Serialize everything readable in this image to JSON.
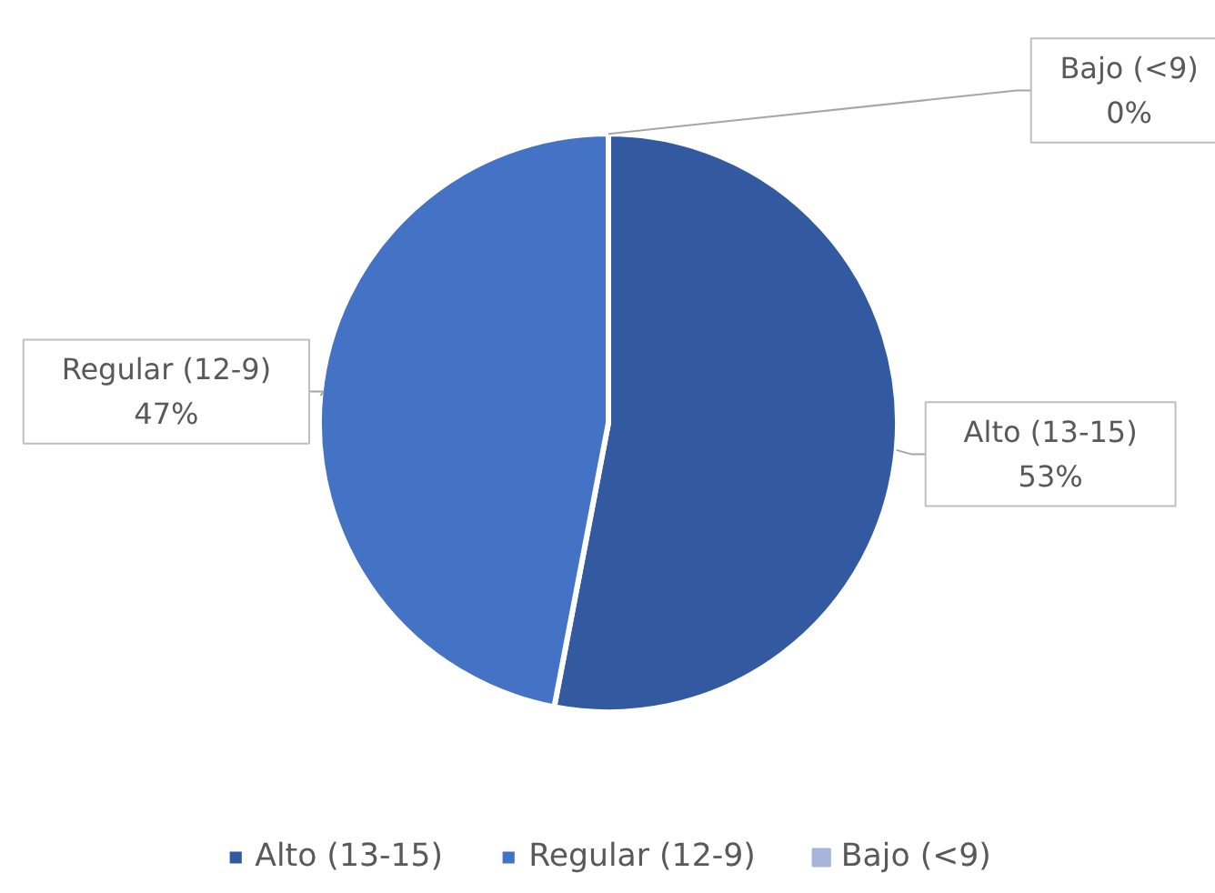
{
  "chart_data": {
    "type": "pie",
    "categories": [
      "Alto (13-15)",
      "Regular (12-9)",
      "Bajo (<9)"
    ],
    "values": [
      53,
      47,
      0
    ],
    "colors": [
      "#335aa0",
      "#4472c4",
      "#a5b4da"
    ],
    "value_labels": [
      "53%",
      "47%",
      "0%"
    ],
    "legend": "bottom"
  }
}
